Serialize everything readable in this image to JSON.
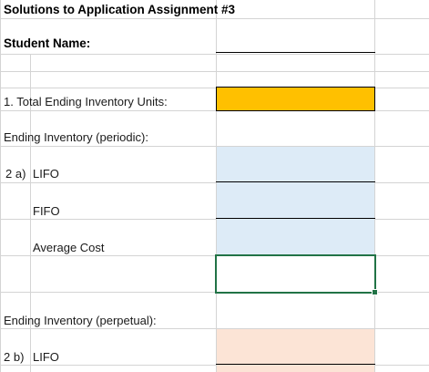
{
  "sheet": {
    "title": "Solutions to Application Assignment #3",
    "student_label": "Student Name:",
    "q1_label": "1. Total Ending Inventory Units:",
    "periodic_header": "Ending Inventory (periodic):",
    "q2a_prefix": "2 a)",
    "lifo_label": "LIFO",
    "fifo_label": "FIFO",
    "avg_label": "Average Cost",
    "perpetual_header": "Ending Inventory (perpetual):",
    "q2b_prefix": "2 b)",
    "lifo_label_2": "LIFO"
  },
  "colors": {
    "answer_orange": "#ffc000",
    "periodic_blue": "#ddebf7",
    "perpetual_peach": "#fce4d6",
    "selection_green": "#217346",
    "gridline": "#d4d4d4"
  }
}
